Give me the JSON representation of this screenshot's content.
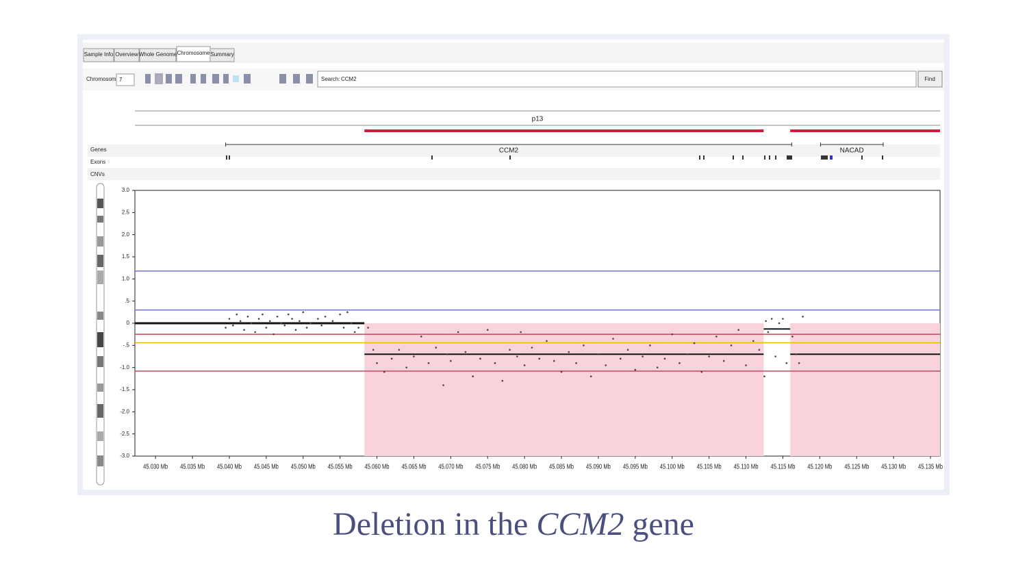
{
  "tabs": [
    "Sample Info",
    "Overview",
    "Whole Genome",
    "Chromosome",
    "Summary"
  ],
  "toolbar": {
    "chromosome_label": "Chromosome",
    "chromosome_value": "7",
    "search_label": "Search:",
    "search_value": "CCM2",
    "find_button": "Find"
  },
  "tracks": {
    "band": "p13",
    "genes_label": "Genes",
    "exons_label": "Exons",
    "cnvs_label": "CNVs",
    "genes": [
      {
        "name": "CCM2",
        "start": 45.0395,
        "end": 45.1162
      },
      {
        "name": "NACAD",
        "start": 45.1201,
        "end": 45.1286
      }
    ]
  },
  "chart_data": {
    "type": "scatter",
    "color": "#444444",
    "xlim": [
      45.0272,
      45.1363
    ],
    "ylim": [
      -3,
      3
    ],
    "xticks": [
      {
        "value": 45.03,
        "label": "45.030 Mb"
      },
      {
        "value": 45.035,
        "label": "45.035 Mb"
      },
      {
        "value": 45.04,
        "label": "45.040 Mb"
      },
      {
        "value": 45.045,
        "label": "45.045 Mb"
      },
      {
        "value": 45.05,
        "label": "45.050 Mb"
      },
      {
        "value": 45.055,
        "label": "45.055 Mb"
      },
      {
        "value": 45.06,
        "label": "45.060 Mb"
      },
      {
        "value": 45.065,
        "label": "45.065 Mb"
      },
      {
        "value": 45.07,
        "label": "45.070 Mb"
      },
      {
        "value": 45.075,
        "label": "45.075 Mb"
      },
      {
        "value": 45.08,
        "label": "45.080 Mb"
      },
      {
        "value": 45.085,
        "label": "45.085 Mb"
      },
      {
        "value": 45.09,
        "label": "45.090 Mb"
      },
      {
        "value": 45.095,
        "label": "45.095 Mb"
      },
      {
        "value": 45.1,
        "label": "45.100 Mb"
      },
      {
        "value": 45.105,
        "label": "45.105 Mb"
      },
      {
        "value": 45.11,
        "label": "45.110 Mb"
      },
      {
        "value": 45.115,
        "label": "45.115 Mb"
      },
      {
        "value": 45.12,
        "label": "45.120 Mb"
      },
      {
        "value": 45.125,
        "label": "45.125 Mb"
      },
      {
        "value": 45.13,
        "label": "45.130 Mb"
      },
      {
        "value": 45.135,
        "label": "45.135 Mb"
      }
    ],
    "yticks": [
      {
        "value": 3,
        "label": "3.0"
      },
      {
        "value": 2.5,
        "label": "2.5"
      },
      {
        "value": 2,
        "label": "2.0"
      },
      {
        "value": 1.5,
        "label": "1.5"
      },
      {
        "value": 1,
        "label": "1.0"
      },
      {
        "value": 0.5,
        "label": ".5"
      },
      0,
      {
        "value": -0.5,
        "label": "-.5"
      },
      {
        "value": -1,
        "label": "-1.0"
      },
      {
        "value": -1.5,
        "label": "-1.5"
      },
      {
        "value": -2,
        "label": "-2.0"
      },
      {
        "value": -2.5,
        "label": "-2.5"
      },
      {
        "value": -3,
        "label": "-3.0"
      }
    ],
    "deleted_regions": [
      {
        "start": 45.0583,
        "end": 45.1124
      },
      {
        "start": 45.116,
        "end": 45.1363
      }
    ],
    "thresholds": [
      {
        "value": 1.18,
        "color": "#6f6fd0"
      },
      {
        "value": 0.3,
        "color": "#6f6fd0"
      },
      {
        "value": -0.25,
        "color": "#c0485a"
      },
      {
        "value": -0.44,
        "color": "#f0b400"
      },
      {
        "value": -1.08,
        "color": "#c0485a"
      }
    ],
    "segments": [
      {
        "start": 45.0272,
        "end": 45.0583,
        "value": 0
      },
      {
        "start": 45.0583,
        "end": 45.1124,
        "value": -0.7
      },
      {
        "start": 45.1124,
        "end": 45.116,
        "value": -0.13
      },
      {
        "start": 45.116,
        "end": 45.1363,
        "value": -0.7
      }
    ],
    "x": [
      45.0395,
      45.04,
      45.0405,
      45.041,
      45.0415,
      45.042,
      45.0425,
      45.043,
      45.0435,
      45.044,
      45.0445,
      45.045,
      45.0455,
      45.046,
      45.0465,
      45.047,
      45.0475,
      45.048,
      45.0485,
      45.049,
      45.0495,
      45.05,
      45.0505,
      45.051,
      45.052,
      45.0525,
      45.053,
      45.054,
      45.055,
      45.0555,
      45.056,
      45.0565,
      45.057,
      45.0575,
      45.0588,
      45.0595,
      45.06,
      45.061,
      45.062,
      45.063,
      45.064,
      45.065,
      45.066,
      45.067,
      45.068,
      45.069,
      45.0695,
      45.07,
      45.071,
      45.072,
      45.073,
      45.074,
      45.075,
      45.076,
      45.077,
      45.078,
      45.079,
      45.0795,
      45.08,
      45.081,
      45.082,
      45.083,
      45.084,
      45.085,
      45.086,
      45.087,
      45.088,
      45.089,
      45.09,
      45.091,
      45.092,
      45.093,
      45.094,
      45.095,
      45.096,
      45.097,
      45.098,
      45.099,
      45.1,
      45.101,
      45.102,
      45.103,
      45.104,
      45.105,
      45.106,
      45.107,
      45.108,
      45.109,
      45.11,
      45.111,
      45.1118,
      45.1125,
      45.1127,
      45.113,
      45.1135,
      45.114,
      45.1145,
      45.115,
      45.1155,
      45.1163,
      45.1168,
      45.1172,
      45.1177
    ],
    "values": [
      -0.1,
      0.1,
      -0.05,
      0.2,
      0.05,
      -0.15,
      0.15,
      0,
      -0.2,
      0.1,
      0.2,
      -0.1,
      0.05,
      -0.25,
      0.15,
      0,
      -0.05,
      0.2,
      0.1,
      -0.15,
      0.05,
      0.25,
      -0.1,
      0,
      0.1,
      -0.05,
      0.15,
      0.05,
      0.2,
      -0.1,
      0.25,
      0,
      -0.2,
      -0.1,
      -0.1,
      -0.6,
      -0.9,
      -1.1,
      -0.8,
      -0.6,
      -1.0,
      -0.75,
      -0.3,
      -0.9,
      -0.55,
      -1.4,
      -0.7,
      -0.85,
      -0.2,
      -0.65,
      -1.2,
      -0.8,
      -0.15,
      -0.9,
      -1.3,
      -0.6,
      -0.75,
      -0.2,
      -0.95,
      -0.55,
      -0.8,
      -0.4,
      -0.85,
      -1.1,
      -0.65,
      -0.9,
      -0.5,
      -1.2,
      -0.7,
      -0.95,
      -0.35,
      -0.8,
      -0.6,
      -1.05,
      -0.75,
      -0.5,
      -1.0,
      -0.8,
      -0.25,
      -0.9,
      -0.7,
      -0.45,
      -1.1,
      -0.75,
      -0.3,
      -0.85,
      -0.5,
      -0.15,
      -0.95,
      -0.4,
      -0.6,
      -1.2,
      0.05,
      -0.2,
      0.1,
      -0.75,
      0,
      0.1,
      -0.9,
      -0.3,
      -0.7,
      -0.9,
      0.15
    ]
  },
  "caption": {
    "prefix": "Deletion in the ",
    "gene": "CCM2",
    "suffix": " gene"
  }
}
